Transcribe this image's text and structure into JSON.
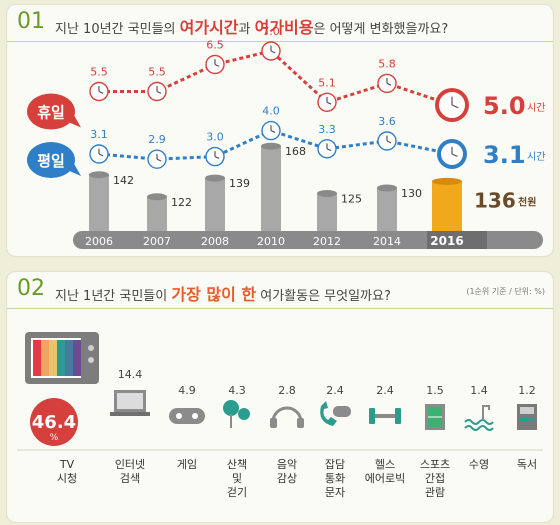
{
  "section1": {
    "number": "01",
    "q_pre": "지난 10년간 국민들의 ",
    "q_hl1": "여가시간",
    "q_mid": "과 ",
    "q_hl2": "여가비용",
    "q_post": "은 어떻게 변화했을까요?"
  },
  "section2": {
    "number": "02",
    "q_pre": "지난 1년간 국민들이 ",
    "q_hl": "가장 많이 한",
    "q_post": " 여가활동은 무엇일까요?",
    "note": "(1순위 기준 / 단위: %)"
  },
  "chart_data": [
    {
      "type": "line",
      "categories": [
        "2006",
        "2007",
        "2008",
        "2010",
        "2012",
        "2014",
        "2016"
      ],
      "series": [
        {
          "name": "휴일",
          "values": [
            5.5,
            5.5,
            6.5,
            7.0,
            5.1,
            5.8,
            5.0
          ],
          "color": "#d6403c"
        },
        {
          "name": "평일",
          "values": [
            3.1,
            2.9,
            3.0,
            4.0,
            3.3,
            3.6,
            3.1
          ],
          "color": "#2f7fc8"
        }
      ],
      "costs": [
        142,
        122,
        139,
        168,
        125,
        130,
        136
      ],
      "unit_time": "시간",
      "unit_cost": "천원",
      "highlight_color": "#f2a81c"
    },
    {
      "type": "bar",
      "categories": [
        "TV 시청",
        "인터넷 검색",
        "게임",
        "산책 및 걷기",
        "음악 감상",
        "잡담 통화 문자",
        "헬스 에어로빅",
        "스포츠 간접 관람",
        "수영",
        "독서"
      ],
      "values": [
        46.4,
        14.4,
        4.9,
        4.3,
        2.8,
        2.4,
        2.4,
        1.5,
        1.4,
        1.2
      ],
      "value_labels": [
        "46.4",
        "14.4",
        "4.9",
        "4.3",
        "2.8",
        "2.4",
        "2.4",
        "1.5",
        "1.4",
        "1.2"
      ],
      "label_lines": [
        [
          "TV",
          "시청"
        ],
        [
          "인터넷",
          "검색"
        ],
        [
          "게임"
        ],
        [
          "산책",
          "및",
          "걷기"
        ],
        [
          "음악",
          "감상"
        ],
        [
          "잡담",
          "통화",
          "문자"
        ],
        [
          "헬스",
          "에어로빅"
        ],
        [
          "스포츠",
          "간접",
          "관람"
        ],
        [
          "수영"
        ],
        [
          "독서"
        ]
      ],
      "icons": [
        "tv-icon",
        "laptop-icon",
        "gamepad-icon",
        "tree-icon",
        "headphones-icon",
        "phone-icon",
        "dumbbell-icon",
        "stadium-icon",
        "swimming-icon",
        "book-icon"
      ],
      "percent_sign": "%"
    }
  ]
}
